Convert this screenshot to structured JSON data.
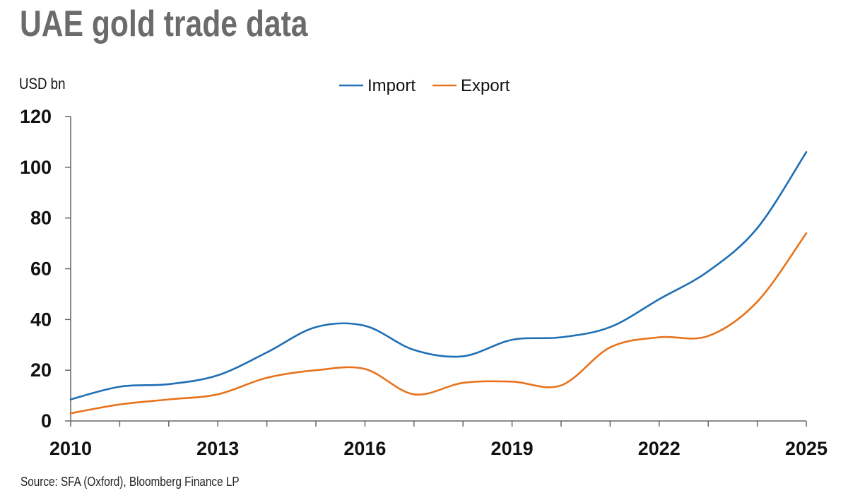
{
  "chart_data": {
    "type": "line",
    "title": "UAE gold trade data",
    "ylabel": "USD bn",
    "xlabel": "",
    "source": "Source: SFA (Oxford), Bloomberg Finance LP",
    "ylim": [
      0,
      120
    ],
    "xlim": [
      2010,
      2025
    ],
    "y_ticks": [
      "0",
      "20",
      "40",
      "60",
      "80",
      "100",
      "120"
    ],
    "x_ticks": [
      "2010",
      "2013",
      "2016",
      "2019",
      "2022",
      "2025"
    ],
    "legend_position": "top-center",
    "grid": false,
    "series": [
      {
        "name": "Import",
        "color": "#1f6fb5",
        "x": [
          2010,
          2011,
          2012,
          2013,
          2014,
          2015,
          2016,
          2017,
          2018,
          2019,
          2020,
          2021,
          2022,
          2023,
          2024,
          2025
        ],
        "values": [
          8.5,
          13.5,
          14.5,
          18,
          27,
          37,
          37.5,
          28,
          25.5,
          32,
          33,
          37,
          48,
          59,
          76,
          106
        ]
      },
      {
        "name": "Export",
        "color": "#e8731c",
        "x": [
          2010,
          2011,
          2012,
          2013,
          2014,
          2015,
          2016,
          2017,
          2018,
          2019,
          2020,
          2021,
          2022,
          2023,
          2024,
          2025
        ],
        "values": [
          3,
          6.5,
          8.5,
          10.5,
          17,
          20,
          20.5,
          10.5,
          15,
          15.5,
          14,
          29,
          33,
          33.5,
          47,
          74
        ]
      }
    ]
  }
}
